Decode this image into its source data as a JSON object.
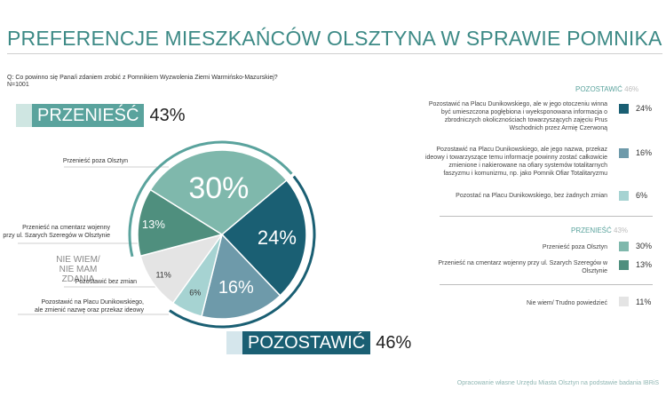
{
  "title": "PREFERENCJE MIESZKAŃCÓW OLSZTYNA W SPRAWIE POMNIKA",
  "question": "Q: Co powinno się Pana/i zdaniem zrobić z Pomnikiem Wyzwolenia Ziemi Warmińsko-Mazurskiej?",
  "n": "N=1001",
  "groups": {
    "move": {
      "label": "PRZENIEŚĆ",
      "pct": "43%"
    },
    "keep": {
      "label": "POZOSTAWIĆ",
      "pct": "46%"
    }
  },
  "colors": {
    "move_outside": "#7fb8ac",
    "move_cemetery": "#4f8f7e",
    "dont_know": "#e4e4e4",
    "keep_no_change": "#a6d3d2",
    "keep_rename": "#6e9aaa",
    "keep_context": "#1a5f73",
    "ring": "#5aa39d"
  },
  "chart_data": {
    "type": "pie",
    "slices": [
      {
        "key": "keep_context",
        "label": "Pozostawić na Placu Dunikowskiego, ale w jego otoczeniu winna być umieszczona pogłębiona i wyeksponowana informacja o zbrodniczych okolicznościach towarzyszących zajęciu Prus Wschodnich przez Armię Czerwoną",
        "value": 24,
        "value_label": "24%"
      },
      {
        "key": "keep_rename",
        "label": "Pozostawić na Placu Dunikowskiego, ale zmienić nazwę oraz przekaz ideowy",
        "value": 16,
        "value_label": "16%"
      },
      {
        "key": "keep_no_change",
        "label": "Pozostawić bez zmian",
        "value": 6,
        "value_label": "6%"
      },
      {
        "key": "dont_know",
        "label": "NIE WIEM/ NIE MAM ZDANIA",
        "value": 11,
        "value_label": "11%"
      },
      {
        "key": "move_cemetery",
        "label": "Przenieść na cmentarz wojenny przy ul. Szarych Szeregów w Olsztynie",
        "value": 13,
        "value_label": "13%"
      },
      {
        "key": "move_outside",
        "label": "Przenieść poza Olsztyn",
        "value": 30,
        "value_label": "30%"
      }
    ]
  },
  "left_labels": {
    "outside": "Przenieść poza Olsztyn",
    "cemetery_1": "Przenieść na cmentarz wojenny",
    "cemetery_2": "przy ul. Szarych Szeregów w Olsztynie",
    "dk_1": "NIE WIEM/",
    "dk_2": "NIE MAM ZDANIA",
    "no_change": "Pozostawić bez zmian",
    "rename_1": "Pozostawić na Placu Dunikowskiego,",
    "rename_2": "ale zmienić nazwę oraz przekaz ideowy"
  },
  "legend": {
    "keep_head": "POZOSTAWIĆ",
    "keep_head_pct": "46%",
    "move_head": "PRZENIEŚĆ",
    "move_head_pct": "43%",
    "items": {
      "keep_context_1": "Pozostawić na Placu Dunikowskiego, ale w jego otoczeniu winna",
      "keep_context_2": "być umieszczona pogłębiona i wyeksponowana informacja o",
      "keep_context_3": "zbrodniczych okolicznościach towarzyszących zajęciu Prus",
      "keep_context_4": "Wschodnich przez Armię Czerwoną",
      "keep_context_pct": "24%",
      "keep_rename_1": "Pozostawić  na Placu Dunikowskiego, ale jego nazwa, przekaz",
      "keep_rename_2": "ideowy i towarzyszące temu informacje powinny zostać całkowicie",
      "keep_rename_3": "zmienione i nakierowane na ofiary systemów totalitarnych",
      "keep_rename_4": "faszyzmu i komunizmu, np. jako Pomnik Ofiar Totalitaryzmu",
      "keep_rename_pct": "16%",
      "keep_no_change": "Pozostać na Placu Dunikowskiego, bez żadnych zmian",
      "keep_no_change_pct": "6%",
      "move_outside": "Przenieść poza Olsztyn",
      "move_outside_pct": "30%",
      "move_cemetery_1": "Przenieść na cmentarz wojenny przy ul. Szarych Szeregów w",
      "move_cemetery_2": "Olsztynie",
      "move_cemetery_pct": "13%",
      "dont_know": "Nie wiem/ Trudno powiedzieć",
      "dont_know_pct": "11%"
    }
  },
  "footer": "Opracowanie własne Urzędu Miasta Olsztyn na podstawie badania IBRiS"
}
